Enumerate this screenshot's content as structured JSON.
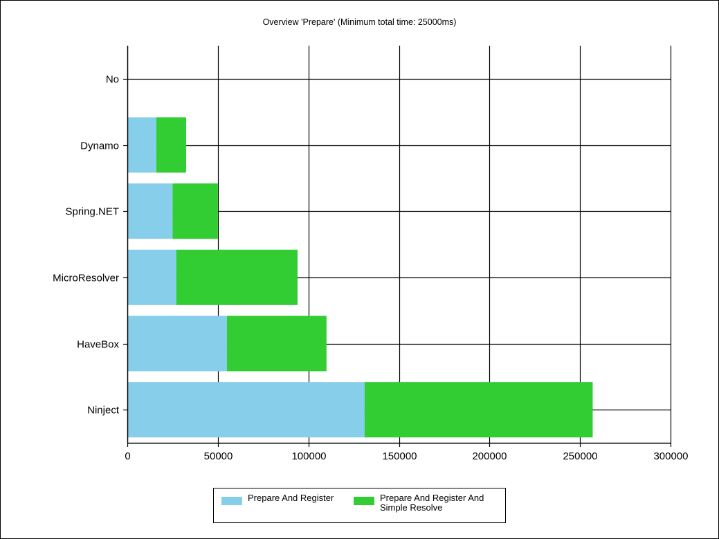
{
  "chart_data": {
    "type": "bar",
    "orientation": "horizontal",
    "stacked": true,
    "title": "Overview 'Prepare' (Minimum total time: 25000ms)",
    "categories": [
      "No",
      "Dynamo",
      "Spring.NET",
      "MicroResolver",
      "HaveBox",
      "Ninject"
    ],
    "series": [
      {
        "name": "Prepare And Register",
        "color": "#87ceeb",
        "values": [
          0,
          16000,
          25000,
          27000,
          55000,
          131000
        ]
      },
      {
        "name": "Prepare And Register And Simple Resolve",
        "color": "#32cd32",
        "values": [
          0,
          16500,
          25000,
          67000,
          55000,
          126000
        ]
      }
    ],
    "xlim": [
      0,
      300000
    ],
    "xticks": [
      0,
      50000,
      100000,
      150000,
      200000,
      250000,
      300000
    ],
    "xtick_labels": [
      "0",
      "50000",
      "100000",
      "150000",
      "200000",
      "250000",
      "300000"
    ],
    "grid": true,
    "legend_position": "bottom-center"
  },
  "legend": {
    "items": [
      {
        "label": "Prepare And Register",
        "color": "#87ceeb"
      },
      {
        "label": "Prepare And Register And Simple Resolve",
        "color": "#32cd32"
      }
    ]
  }
}
